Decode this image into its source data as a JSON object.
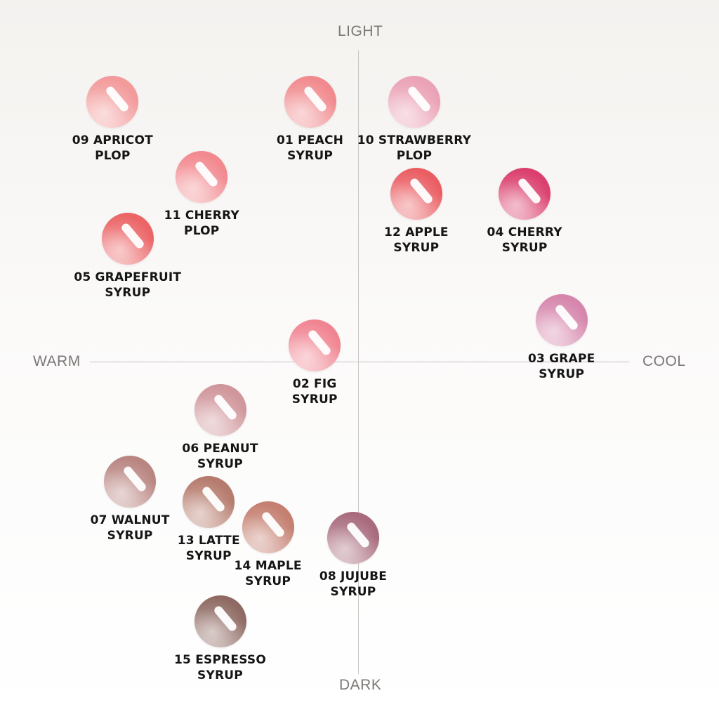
{
  "axes": {
    "top": "LIGHT",
    "bottom": "DARK",
    "left": "WARM",
    "right": "COOL"
  },
  "swatches": [
    {
      "line1": "09 APRICOT",
      "line2": "PLOP",
      "color": "#f39a9b",
      "warmth": -0.945,
      "lightness": 0.836
    },
    {
      "line1": "01 PEACH",
      "line2": "SYRUP",
      "color": "#f18a8e",
      "warmth": -0.185,
      "lightness": 0.836
    },
    {
      "line1": "10 STRAWBERRY",
      "line2": "PLOP",
      "color": "#eba2b6",
      "warmth": 0.216,
      "lightness": 0.836
    },
    {
      "line1": "11 CHERRY",
      "line2": "PLOP",
      "color": "#f2898f",
      "warmth": -0.602,
      "lightness": 0.595
    },
    {
      "line1": "12 APPLE",
      "line2": "SYRUP",
      "color": "#ea5e63",
      "warmth": 0.224,
      "lightness": 0.541
    },
    {
      "line1": "04 CHERRY",
      "line2": "SYRUP",
      "color": "#db3f6e",
      "warmth": 0.641,
      "lightness": 0.541
    },
    {
      "line1": "05 GRAPEFRUIT",
      "line2": "SYRUP",
      "color": "#eb6466",
      "warmth": -0.887,
      "lightness": 0.395
    },
    {
      "line1": "03 GRAPE",
      "line2": "SYRUP",
      "color": "#d686ac",
      "warmth": 0.783,
      "lightness": 0.134
    },
    {
      "line1": "02 FIG",
      "line2": "SYRUP",
      "color": "#f08592",
      "warmth": -0.167,
      "lightness": 0.053
    },
    {
      "line1": "06 PEANUT",
      "line2": "SYRUP",
      "color": "#d0969b",
      "warmth": -0.531,
      "lightness": -0.156
    },
    {
      "line1": "07 WALNUT",
      "line2": "SYRUP",
      "color": "#b98581",
      "warmth": -0.878,
      "lightness": -0.387
    },
    {
      "line1": "13 LATTE",
      "line2": "SYRUP",
      "color": "#b57b6c",
      "warmth": -0.575,
      "lightness": -0.452
    },
    {
      "line1": "14 MAPLE",
      "line2": "SYRUP",
      "color": "#c47f70",
      "warmth": -0.347,
      "lightness": -0.533
    },
    {
      "line1": "08 JUJUBE",
      "line2": "SYRUP",
      "color": "#a86b7d",
      "warmth": -0.019,
      "lightness": -0.568
    },
    {
      "line1": "15 ESPRESSO",
      "line2": "SYRUP",
      "color": "#8e6a62",
      "warmth": -0.531,
      "lightness": -0.838
    }
  ]
}
